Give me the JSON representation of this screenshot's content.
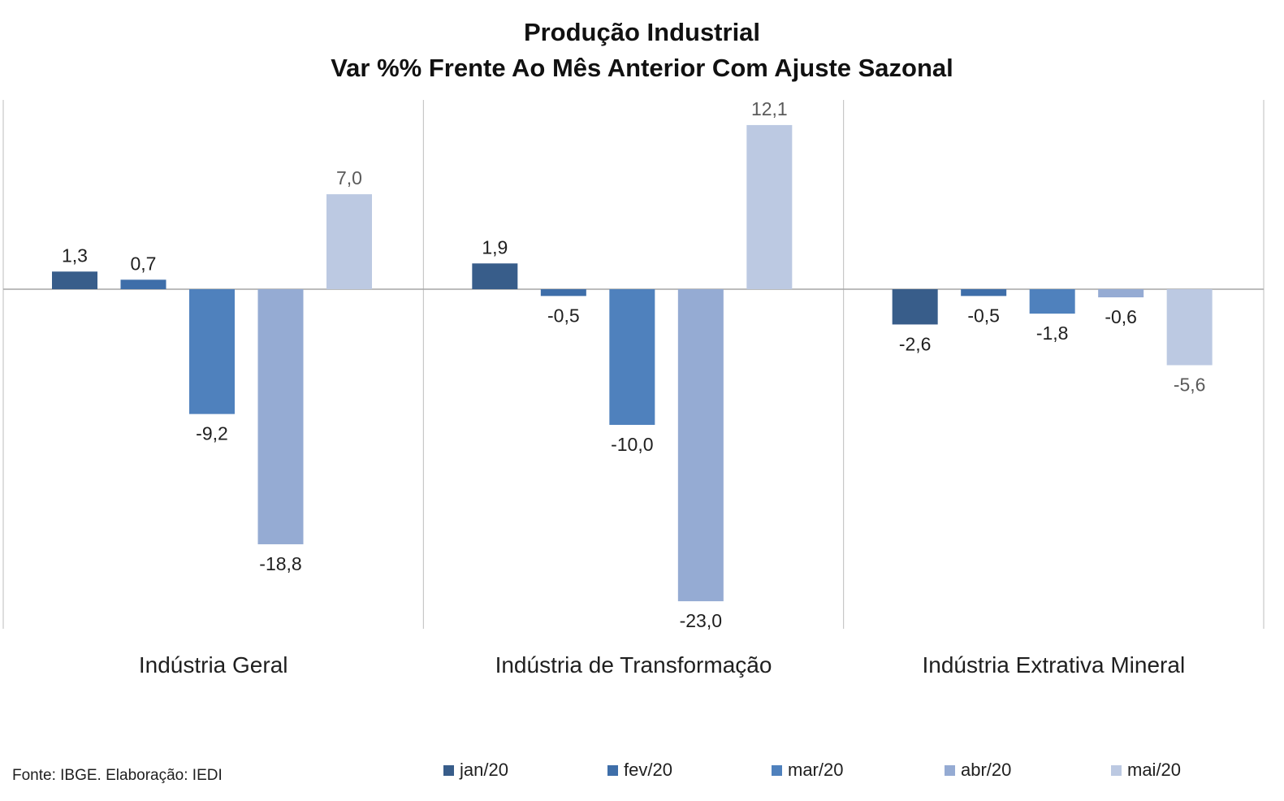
{
  "chart_data": {
    "type": "bar",
    "title": "Produção Industrial",
    "subtitle": "Var %% Frente Ao Mês Anterior Com Ajuste Sazonal",
    "categories": [
      "Indústria Geral",
      "Indústria de Transformação",
      "Indústria Extrativa Mineral"
    ],
    "series": [
      {
        "name": "jan/20",
        "color": "#385d8a",
        "values": [
          1.3,
          1.9,
          -2.6
        ],
        "labels": [
          "1,3",
          "1,9",
          "-2,6"
        ]
      },
      {
        "name": "fev/20",
        "color": "#3e6ea9",
        "values": [
          0.7,
          -0.5,
          -0.5
        ],
        "labels": [
          "0,7",
          "-0,5",
          "-0,5"
        ]
      },
      {
        "name": "mar/20",
        "color": "#4f81bd",
        "values": [
          -9.2,
          -10.0,
          -1.8
        ],
        "labels": [
          "-9,2",
          "-10,0",
          "-1,8"
        ]
      },
      {
        "name": "abr/20",
        "color": "#95abd3",
        "values": [
          -18.8,
          -23.0,
          -0.6
        ],
        "labels": [
          "-18,8",
          "-23,0",
          "-0,6"
        ]
      },
      {
        "name": "mai/20",
        "color": "#bcc9e2",
        "values": [
          7.0,
          12.1,
          -5.6
        ],
        "labels": [
          "7,0",
          "12,1",
          "-5,6"
        ]
      }
    ],
    "ylim": [
      -25,
      14
    ],
    "xlabel": "",
    "ylabel": "",
    "grid": false,
    "legend_position": "bottom"
  },
  "source_note": "Fonte: IBGE. Elaboração: IEDI"
}
